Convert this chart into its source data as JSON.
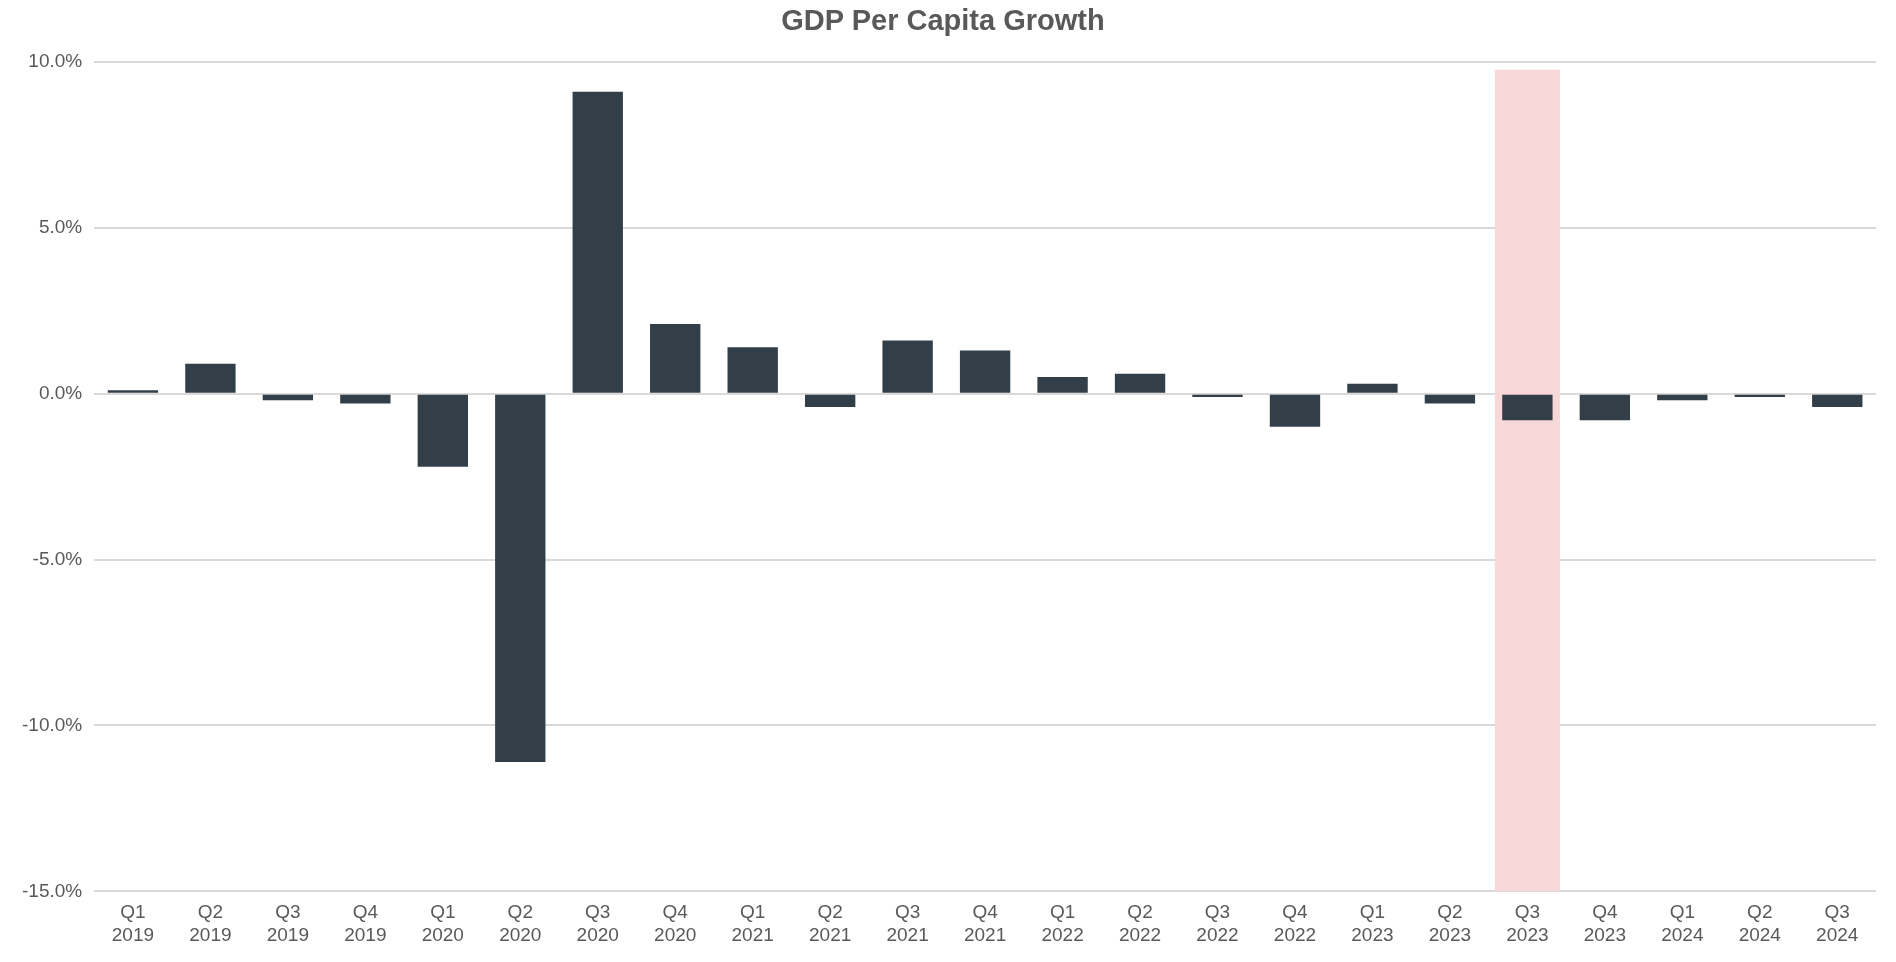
{
  "chart_data": {
    "type": "bar",
    "title": "GDP Per Capita Growth",
    "categories": [
      "Q1 2019",
      "Q2 2019",
      "Q3 2019",
      "Q4 2019",
      "Q1 2020",
      "Q2 2020",
      "Q3 2020",
      "Q4 2020",
      "Q1 2021",
      "Q2 2021",
      "Q3 2021",
      "Q4 2021",
      "Q1 2022",
      "Q2 2022",
      "Q3 2022",
      "Q4 2022",
      "Q1 2023",
      "Q2 2023",
      "Q3 2023",
      "Q4 2023",
      "Q1 2024",
      "Q2 2024",
      "Q3 2024"
    ],
    "values": [
      0.1,
      0.9,
      -0.2,
      -0.3,
      -2.2,
      -11.1,
      9.1,
      2.1,
      1.4,
      -0.4,
      1.6,
      1.3,
      0.5,
      0.6,
      -0.1,
      -1.0,
      0.3,
      -0.3,
      -0.8,
      -0.8,
      -0.2,
      -0.1,
      -0.4
    ],
    "color": "#323e48",
    "ylim": [
      -15,
      10
    ],
    "yticks": [
      {
        "value": -15,
        "label": "-15.0%"
      },
      {
        "value": -10,
        "label": "-10.0%"
      },
      {
        "value": -5,
        "label": "-5.0%"
      },
      {
        "value": 0,
        "label": "0.0%"
      },
      {
        "value": 5,
        "label": "5.0%"
      },
      {
        "value": 10,
        "label": "10.0%"
      }
    ],
    "bands": [
      {
        "axis": "x",
        "from": "Q3 2023",
        "to": "Q3 2023",
        "color": "#f8d7d8"
      }
    ],
    "grid": "y",
    "legend": false
  }
}
